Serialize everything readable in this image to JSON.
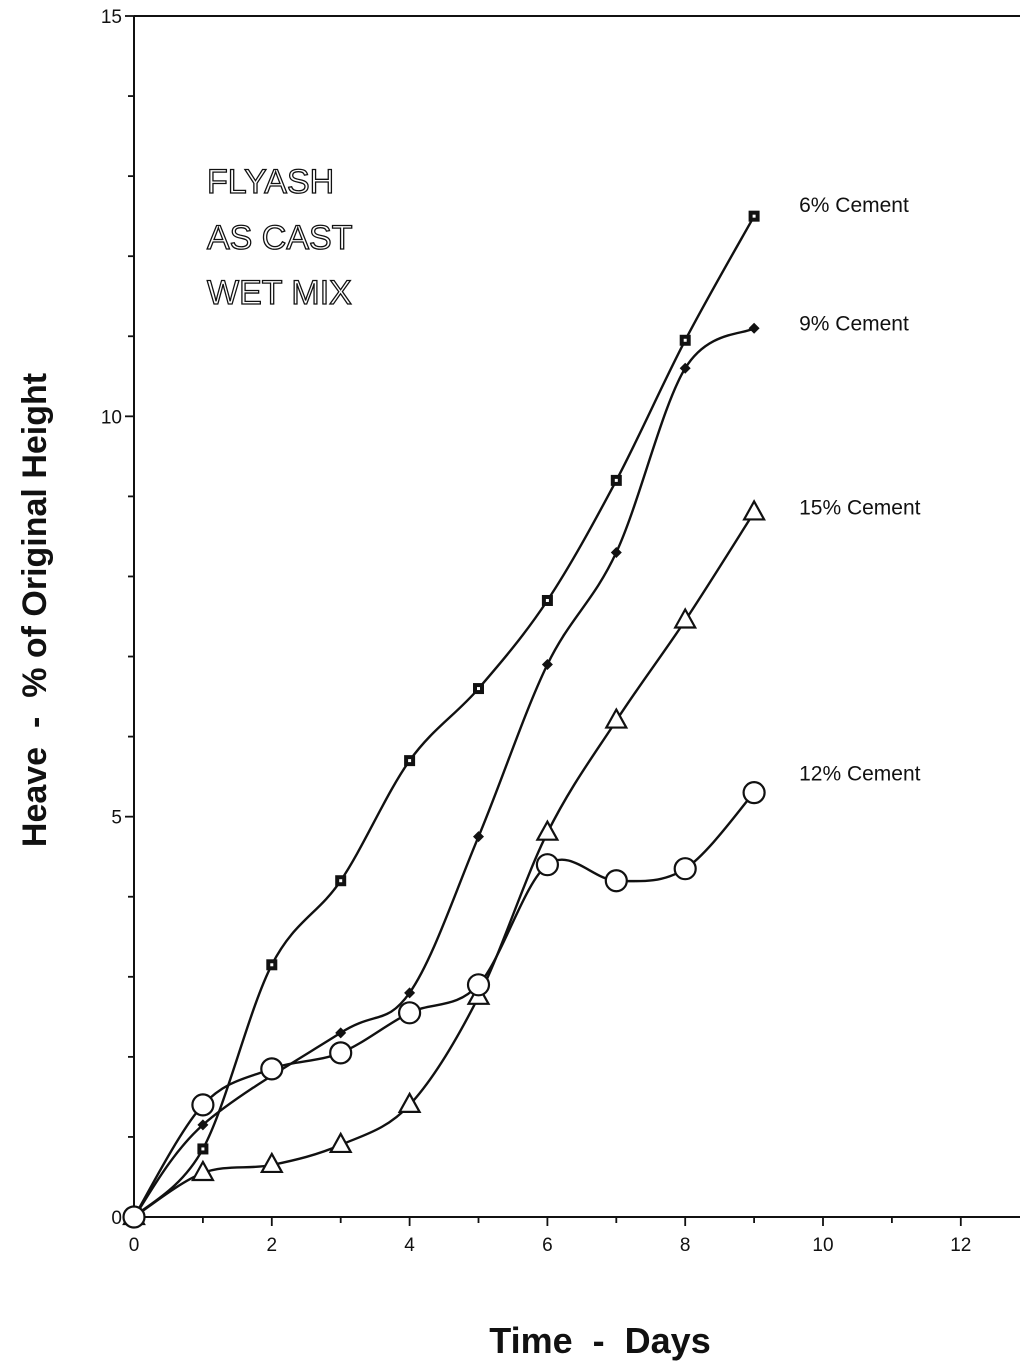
{
  "chart_data": {
    "type": "line",
    "xlabel": "Time  -  Days",
    "ylabel": "Heave  -  % of Original Height",
    "xlim": [
      0,
      12
    ],
    "ylim": [
      0,
      15
    ],
    "xticks": [
      0,
      2,
      4,
      6,
      8,
      10,
      12
    ],
    "yticks": [
      0,
      5,
      10,
      15
    ],
    "grid": false,
    "annotation": [
      "FLYASH",
      "AS CAST",
      "WET MIX"
    ],
    "series": [
      {
        "name": "6% Cement",
        "marker": "square",
        "x": [
          0,
          1,
          2,
          3,
          4,
          5,
          6,
          7,
          8,
          9
        ],
        "y": [
          0,
          0.85,
          3.15,
          4.2,
          5.7,
          6.6,
          7.7,
          9.2,
          10.95,
          12.5
        ]
      },
      {
        "name": "9% Cement",
        "marker": "diamond",
        "x": [
          0,
          1,
          3,
          4,
          5,
          6,
          7,
          8,
          9
        ],
        "y": [
          0,
          1.15,
          2.3,
          2.8,
          4.75,
          6.9,
          8.3,
          10.6,
          11.1
        ]
      },
      {
        "name": "15% Cement",
        "marker": "triangle",
        "x": [
          0,
          1,
          2,
          3,
          4,
          5,
          6,
          7,
          8,
          9
        ],
        "y": [
          0,
          0.55,
          0.65,
          0.9,
          1.4,
          2.75,
          4.8,
          6.2,
          7.45,
          8.8
        ]
      },
      {
        "name": "12% Cement",
        "marker": "circle",
        "x": [
          0,
          1,
          2,
          3,
          4,
          5,
          6,
          7,
          8,
          9
        ],
        "y": [
          0,
          1.4,
          1.85,
          2.05,
          2.55,
          2.9,
          4.4,
          4.2,
          4.35,
          5.3
        ]
      }
    ]
  }
}
